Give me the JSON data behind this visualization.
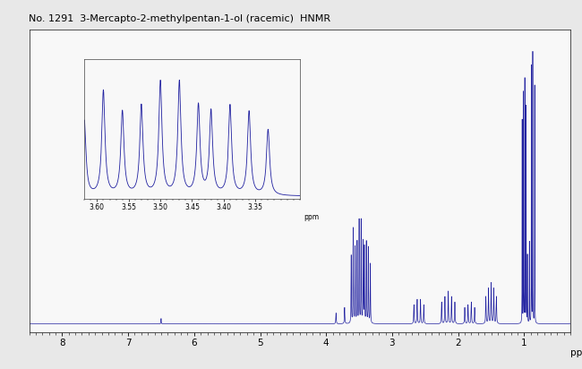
{
  "title": "No. 1291  3-Mercapto-2-methylpentan-1-ol (racemic)  HNMR",
  "title_fontsize": 8,
  "bg_color": "#e8e8e8",
  "plot_bg": "#f8f8f8",
  "xlim": [
    8.5,
    0.3
  ],
  "ylim": [
    -0.03,
    1.08
  ],
  "xticks": [
    8,
    7,
    6,
    5,
    4,
    3,
    2,
    1
  ],
  "xlabel": "ppm",
  "line_color": "#2020a0",
  "line_width": 0.5,
  "inset_xticks": [
    3.6,
    3.55,
    3.5,
    3.45,
    3.4,
    3.35
  ]
}
